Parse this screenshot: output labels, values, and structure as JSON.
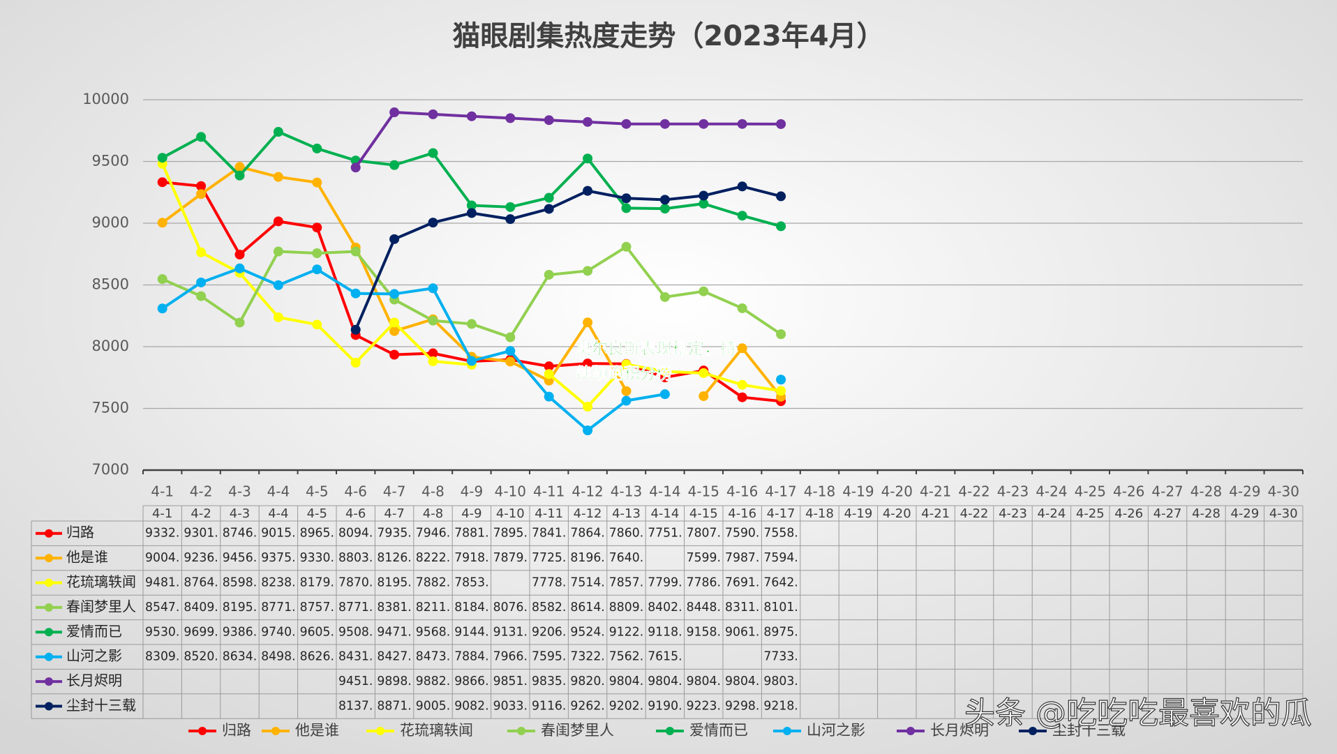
{
  "chart_data": {
    "type": "line",
    "title": "猫眼剧集热度走势（2023年4月）",
    "annotation": "奥尔良斯表现稳定，持续领跑积分榜",
    "watermark": "头条 @吃吃吃最喜欢的瓜",
    "categories": [
      "4-1",
      "4-2",
      "4-3",
      "4-4",
      "4-5",
      "4-6",
      "4-7",
      "4-8",
      "4-9",
      "4-10",
      "4-11",
      "4-12",
      "4-13",
      "4-14",
      "4-15",
      "4-16",
      "4-17",
      "4-18",
      "4-19",
      "4-20",
      "4-21",
      "4-22",
      "4-23",
      "4-24",
      "4-25",
      "4-26",
      "4-27",
      "4-28",
      "4-29",
      "4-30"
    ],
    "ylim": [
      7000,
      10000
    ],
    "yticks": [
      7000,
      7500,
      8000,
      8500,
      9000,
      9500,
      10000
    ],
    "grid": true,
    "legend": "bottom",
    "series": [
      {
        "name": "归路",
        "color": "#ff0000",
        "values": [
          9332,
          9301,
          8746,
          9015,
          8965,
          8094,
          7935,
          7946,
          7881,
          7895,
          7841,
          7864,
          7860,
          7751,
          7807,
          7590,
          7558,
          null,
          null,
          null,
          null,
          null,
          null,
          null,
          null,
          null,
          null,
          null,
          null,
          null
        ],
        "value_labels": [
          "9332.",
          "9301.",
          "8746.",
          "9015.",
          "8965.",
          "8094.",
          "7935.",
          "7946.",
          "7881.",
          "7895.",
          "7841.",
          "7864.",
          "7860.",
          "7751.",
          "7807.",
          "7590.",
          "7558.",
          null,
          null,
          null,
          null,
          null,
          null,
          null,
          null,
          null,
          null,
          null,
          null,
          null
        ]
      },
      {
        "name": "他是谁",
        "color": "#ffb200",
        "values": [
          9004,
          9236,
          9456,
          9375,
          9330,
          8803,
          8126,
          8222,
          7918,
          7879,
          7725,
          8196,
          7640,
          null,
          7599,
          7987,
          7594,
          null,
          null,
          null,
          null,
          null,
          null,
          null,
          null,
          null,
          null,
          null,
          null,
          null
        ],
        "value_labels": [
          "9004.",
          "9236.",
          "9456.",
          "9375.",
          "9330.",
          "8803.",
          "8126.",
          "8222.",
          "7918.",
          "7879.",
          "7725.",
          "8196.",
          "7640.",
          null,
          "7599.",
          "7987.",
          "7594.",
          null,
          null,
          null,
          null,
          null,
          null,
          null,
          null,
          null,
          null,
          null,
          null,
          null
        ]
      },
      {
        "name": "花琉璃轶闻",
        "color": "#ffff00",
        "values": [
          9481,
          8764,
          8598,
          8238,
          8179,
          7870,
          8195,
          7882,
          7853,
          null,
          7778,
          7514,
          7857,
          7799,
          7786,
          7691,
          7642,
          null,
          null,
          null,
          null,
          null,
          null,
          null,
          null,
          null,
          null,
          null,
          null,
          null
        ],
        "value_labels": [
          "9481.",
          "8764.",
          "8598.",
          "8238.",
          "8179.",
          "7870.",
          "8195.",
          "7882.",
          "7853.",
          null,
          "7778.",
          "7514.",
          "7857.",
          "7799.",
          "7786.",
          "7691.",
          "7642.",
          null,
          null,
          null,
          null,
          null,
          null,
          null,
          null,
          null,
          null,
          null,
          null,
          null
        ]
      },
      {
        "name": "春闺梦里人",
        "color": "#92d050",
        "values": [
          8547,
          8409,
          8195,
          8771,
          8757,
          8771,
          8381,
          8211,
          8184,
          8076,
          8582,
          8614,
          8809,
          8402,
          8448,
          8311,
          8101,
          null,
          null,
          null,
          null,
          null,
          null,
          null,
          null,
          null,
          null,
          null,
          null,
          null
        ],
        "value_labels": [
          "8547.",
          "8409.",
          "8195.",
          "8771.",
          "8757.",
          "8771.",
          "8381.",
          "8211.",
          "8184.",
          "8076.",
          "8582.",
          "8614.",
          "8809.",
          "8402.",
          "8448.",
          "8311.",
          "8101.",
          null,
          null,
          null,
          null,
          null,
          null,
          null,
          null,
          null,
          null,
          null,
          null,
          null
        ]
      },
      {
        "name": "爱情而已",
        "color": "#00b050",
        "values": [
          9530,
          9699,
          9386,
          9740,
          9605,
          9508,
          9471,
          9568,
          9144,
          9131,
          9206,
          9524,
          9122,
          9118,
          9158,
          9061,
          8975,
          null,
          null,
          null,
          null,
          null,
          null,
          null,
          null,
          null,
          null,
          null,
          null,
          null
        ],
        "value_labels": [
          "9530.",
          "9699.",
          "9386.",
          "9740.",
          "9605.",
          "9508.",
          "9471.",
          "9568.",
          "9144.",
          "9131.",
          "9206.",
          "9524.",
          "9122.",
          "9118.",
          "9158.",
          "9061.",
          "8975.",
          null,
          null,
          null,
          null,
          null,
          null,
          null,
          null,
          null,
          null,
          null,
          null,
          null
        ]
      },
      {
        "name": "山河之影",
        "color": "#00b0f0",
        "values": [
          8309,
          8520,
          8634,
          8498,
          8626,
          8431,
          8427,
          8473,
          7884,
          7966,
          7595,
          7322,
          7562,
          7615,
          null,
          null,
          7733,
          null,
          null,
          null,
          null,
          null,
          null,
          null,
          null,
          null,
          null,
          null,
          null,
          null
        ],
        "value_labels": [
          "8309.",
          "8520.",
          "8634.",
          "8498.",
          "8626.",
          "8431.",
          "8427.",
          "8473.",
          "7884.",
          "7966.",
          "7595.",
          "7322.",
          "7562.",
          "7615.",
          null,
          null,
          "7733.",
          null,
          null,
          null,
          null,
          null,
          null,
          null,
          null,
          null,
          null,
          null,
          null,
          null
        ]
      },
      {
        "name": "长月烬明",
        "color": "#7030a0",
        "values": [
          null,
          null,
          null,
          null,
          null,
          9451,
          9898,
          9882,
          9866,
          9851,
          9835,
          9820,
          9804,
          9804,
          9804,
          9804,
          9803,
          null,
          null,
          null,
          null,
          null,
          null,
          null,
          null,
          null,
          null,
          null,
          null,
          null
        ],
        "value_labels": [
          null,
          null,
          null,
          null,
          null,
          "9451.",
          "9898.",
          "9882.",
          "9866.",
          "9851.",
          "9835.",
          "9820.",
          "9804.",
          "9804.",
          "9804.",
          "9804.",
          "9803.",
          null,
          null,
          null,
          null,
          null,
          null,
          null,
          null,
          null,
          null,
          null,
          null,
          null
        ]
      },
      {
        "name": "尘封十三载",
        "color": "#002060",
        "values": [
          null,
          null,
          null,
          null,
          null,
          8137,
          8871,
          9005,
          9082,
          9033,
          9116,
          9262,
          9202,
          9190,
          9223,
          9298,
          9218,
          null,
          null,
          null,
          null,
          null,
          null,
          null,
          null,
          null,
          null,
          null,
          null,
          null
        ],
        "value_labels": [
          null,
          null,
          null,
          null,
          null,
          "8137.",
          "8871.",
          "9005.",
          "9082.",
          "9033.",
          "9116.",
          "9262.",
          "9202.",
          "9190.",
          "9223.",
          "9298.",
          "9218.",
          null,
          null,
          null,
          null,
          null,
          null,
          null,
          null,
          null,
          null,
          null,
          null,
          null
        ]
      }
    ]
  }
}
